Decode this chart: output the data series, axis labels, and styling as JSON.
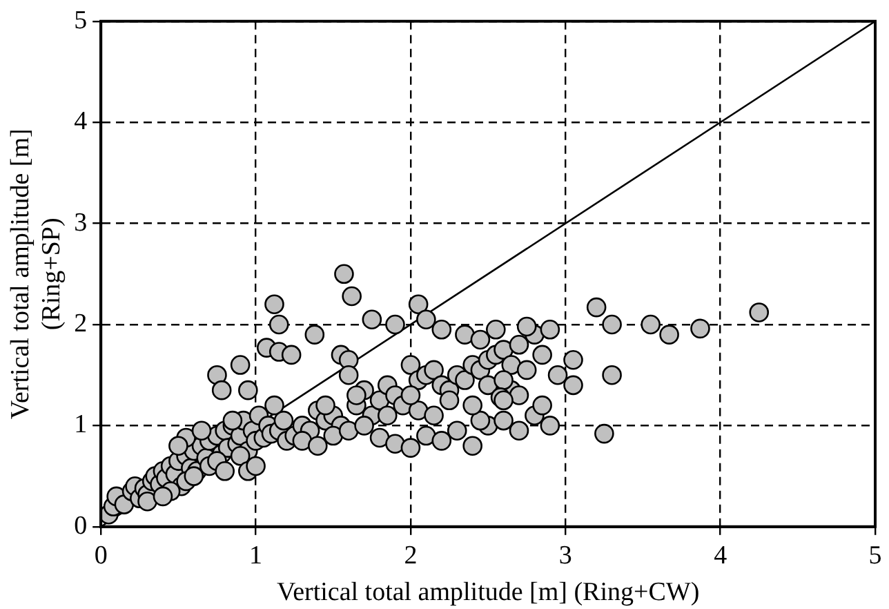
{
  "chart_data": {
    "type": "scatter",
    "xlabel": "Vertical total amplitude [m] (Ring+CW)",
    "ylabel": "Vertical total amplitude [m]\n(Ring+SP)",
    "xlim": [
      0,
      5
    ],
    "ylim": [
      0,
      5
    ],
    "xticks": [
      0,
      1,
      2,
      3,
      4,
      5
    ],
    "yticks": [
      0,
      1,
      2,
      3,
      4,
      5
    ],
    "grid": true,
    "legend": false,
    "series": [
      {
        "marker": "circle",
        "color": "#c0c0c0",
        "x": [
          0.05,
          0.08,
          0.1,
          0.15,
          0.2,
          0.22,
          0.25,
          0.28,
          0.3,
          0.33,
          0.35,
          0.38,
          0.4,
          0.42,
          0.45,
          0.48,
          0.5,
          0.52,
          0.55,
          0.58,
          0.6,
          0.62,
          0.65,
          0.68,
          0.7,
          0.55,
          0.75,
          0.78,
          0.8,
          0.82,
          0.85,
          0.88,
          0.9,
          0.92,
          0.95,
          0.98,
          1.0,
          1.02,
          1.05,
          1.08,
          1.1,
          1.12,
          1.15,
          1.18,
          1.2,
          1.25,
          0.45,
          0.55,
          0.6,
          0.7,
          0.75,
          0.8,
          0.9,
          0.95,
          1.0,
          0.85,
          0.65,
          0.5,
          0.3,
          0.4,
          0.75,
          0.78,
          0.9,
          0.95,
          1.07,
          1.12,
          1.15,
          1.15,
          1.23,
          1.38,
          1.55,
          1.57,
          1.6,
          1.62,
          1.75,
          1.9,
          2.05,
          2.1,
          2.2,
          1.3,
          1.35,
          1.4,
          1.45,
          1.5,
          1.55,
          1.6,
          1.65,
          1.7,
          1.75,
          1.8,
          1.85,
          1.9,
          1.95,
          2.0,
          2.05,
          2.1,
          2.15,
          2.2,
          2.25,
          2.3,
          2.35,
          2.4,
          2.45,
          2.5,
          2.55,
          2.6,
          2.65,
          2.7,
          2.75,
          2.8,
          2.85,
          2.9,
          2.95,
          1.3,
          1.4,
          1.5,
          1.6,
          1.7,
          1.8,
          1.9,
          2.0,
          2.1,
          2.2,
          2.3,
          2.4,
          2.5,
          2.6,
          2.7,
          2.8,
          2.9,
          1.45,
          1.65,
          1.85,
          2.05,
          2.25,
          2.45,
          2.65,
          2.85,
          2.35,
          2.55,
          2.75,
          2.5,
          2.6,
          2.7,
          2.45,
          2.58,
          3.05,
          3.05,
          3.2,
          3.25,
          3.3,
          3.3,
          3.55,
          3.67,
          3.87,
          4.25,
          2.0,
          2.15,
          2.4,
          2.6
        ],
        "values": [
          0.12,
          0.2,
          0.3,
          0.22,
          0.35,
          0.4,
          0.28,
          0.38,
          0.32,
          0.45,
          0.5,
          0.42,
          0.55,
          0.48,
          0.6,
          0.52,
          0.65,
          0.4,
          0.7,
          0.58,
          0.75,
          0.55,
          0.8,
          0.68,
          0.85,
          0.88,
          0.9,
          0.72,
          0.95,
          0.78,
          1.0,
          0.82,
          0.9,
          1.05,
          0.75,
          0.95,
          0.85,
          1.1,
          0.88,
          1.0,
          0.92,
          1.2,
          0.95,
          1.05,
          0.85,
          0.9,
          0.35,
          0.45,
          0.5,
          0.6,
          0.65,
          0.55,
          0.7,
          0.55,
          0.6,
          1.05,
          0.95,
          0.8,
          0.25,
          0.3,
          1.5,
          1.35,
          1.6,
          1.35,
          1.77,
          2.2,
          2.0,
          1.73,
          1.7,
          1.9,
          1.7,
          2.5,
          1.65,
          2.28,
          2.05,
          2.0,
          2.2,
          2.05,
          1.95,
          1.0,
          0.95,
          1.15,
          1.05,
          1.1,
          1.0,
          1.5,
          1.2,
          1.35,
          1.1,
          1.25,
          1.4,
          1.3,
          1.2,
          1.6,
          1.45,
          1.5,
          1.55,
          1.4,
          1.35,
          1.5,
          1.45,
          1.6,
          1.55,
          1.65,
          1.7,
          1.75,
          1.6,
          1.8,
          1.55,
          1.9,
          1.7,
          1.95,
          1.5,
          0.85,
          0.8,
          0.9,
          0.95,
          1.0,
          0.88,
          0.82,
          0.78,
          0.9,
          0.85,
          0.95,
          0.8,
          1.0,
          1.05,
          0.95,
          1.1,
          1.0,
          1.2,
          1.3,
          1.1,
          1.15,
          1.25,
          1.05,
          1.35,
          1.2,
          1.9,
          1.95,
          1.98,
          1.4,
          1.45,
          1.3,
          1.85,
          1.28,
          1.65,
          1.4,
          2.17,
          0.92,
          2.0,
          1.5,
          2.0,
          1.9,
          1.96,
          2.12,
          1.3,
          1.1,
          1.2,
          1.25
        ]
      },
      {
        "type": "line",
        "marker": "none",
        "color": "#000000",
        "x": [
          0,
          5
        ],
        "values": [
          0,
          5
        ]
      }
    ]
  }
}
